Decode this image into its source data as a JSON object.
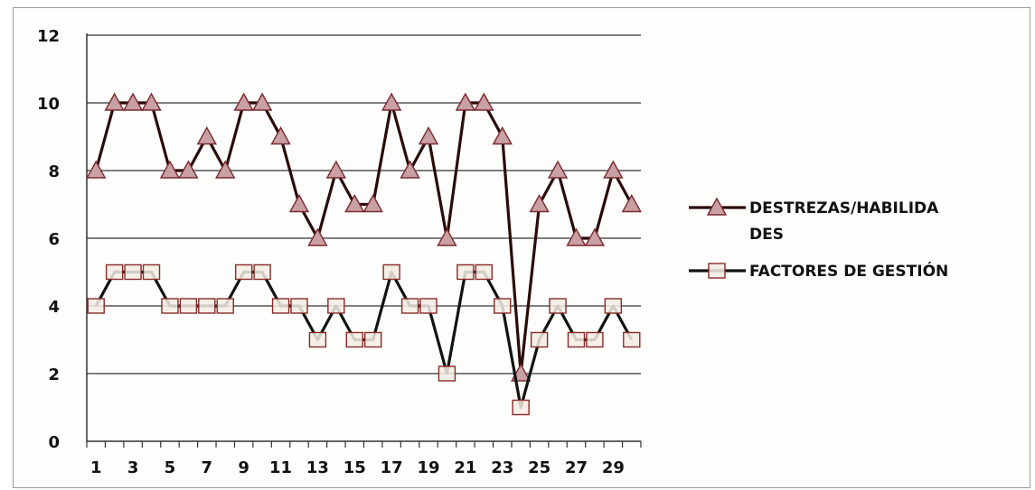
{
  "chart_data": {
    "type": "line",
    "x": [
      1,
      2,
      3,
      4,
      5,
      6,
      7,
      8,
      9,
      10,
      11,
      12,
      13,
      14,
      15,
      16,
      17,
      18,
      19,
      20,
      21,
      22,
      23,
      24,
      25,
      26,
      27,
      28,
      29,
      30
    ],
    "xtick_labels": [
      "1",
      "3",
      "5",
      "7",
      "9",
      "11",
      "13",
      "15",
      "17",
      "19",
      "21",
      "23",
      "25",
      "27",
      "29"
    ],
    "yticks": [
      "0",
      "2",
      "4",
      "6",
      "8",
      "10",
      "12"
    ],
    "ylim": [
      0,
      12
    ],
    "grid": true,
    "legend_position": "right",
    "series": [
      {
        "name": "DESTREZAS/HABILIDADES",
        "legend_lines": [
          "DESTREZAS/HABILIDA",
          "DES"
        ],
        "marker": "triangle",
        "line_color": "#2a0a0a",
        "marker_fill": "#c9a0a4",
        "marker_stroke": "#7a2a30",
        "values": [
          8,
          10,
          10,
          10,
          8,
          8,
          9,
          8,
          10,
          10,
          9,
          7,
          6,
          8,
          7,
          7,
          10,
          8,
          9,
          6,
          10,
          10,
          9,
          2,
          7,
          8,
          6,
          6,
          8,
          7
        ]
      },
      {
        "name": "FACTORES DE GESTIÓN",
        "legend_lines": [
          "FACTORES DE GESTIÓN"
        ],
        "marker": "square",
        "line_color": "#0f140f",
        "marker_fill": "#f3ece4",
        "marker_stroke": "#8a2a28",
        "values": [
          4,
          5,
          5,
          5,
          4,
          4,
          4,
          4,
          5,
          5,
          4,
          4,
          3,
          4,
          3,
          3,
          5,
          4,
          4,
          2,
          5,
          5,
          4,
          1,
          3,
          4,
          3,
          3,
          4,
          3
        ]
      }
    ]
  }
}
